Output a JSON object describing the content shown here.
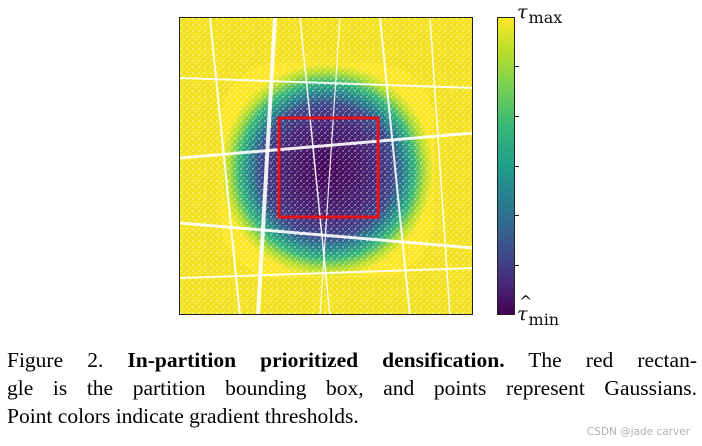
{
  "figure": {
    "colorbar": {
      "max_symbol": "τ",
      "max_hat": "^",
      "max_sub": "max",
      "min_symbol": "τ",
      "min_hat": "^",
      "min_sub": "min",
      "colormap": "viridis",
      "top_color": "#fde725",
      "bottom_color": "#440154"
    },
    "bbox_color": "#e8121a"
  },
  "caption": {
    "figure_label": "Figure 2.",
    "bold_title": "In-partition prioritized densification.",
    "line1_rest": "The red rectan-",
    "line2": "gle is the partition bounding box, and points represent Gaussians.",
    "line3": "Point colors indicate gradient thresholds."
  },
  "watermark": "CSDN @jade carver"
}
